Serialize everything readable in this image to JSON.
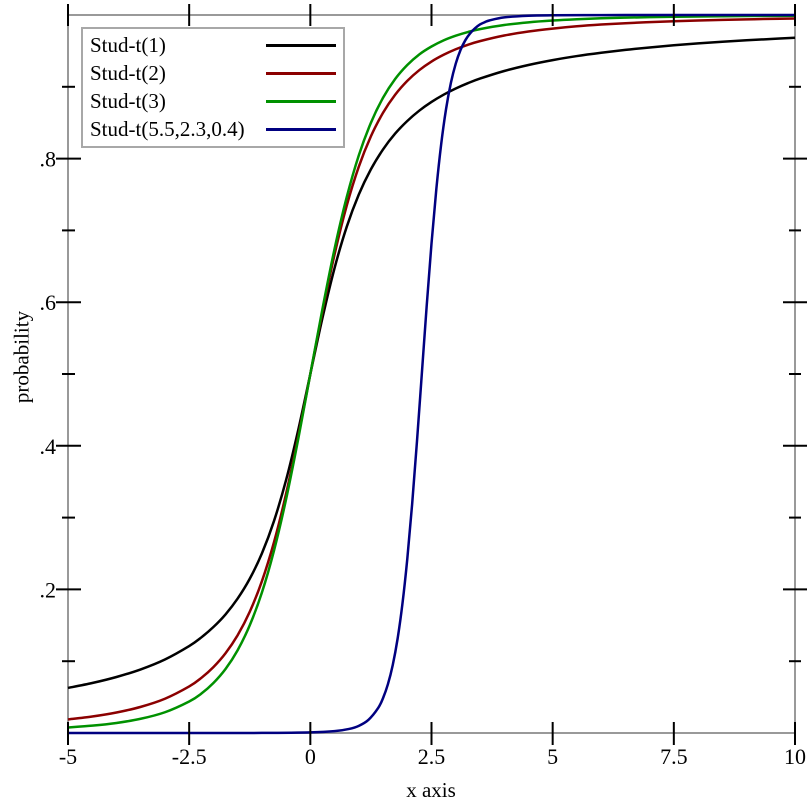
{
  "chart_data": {
    "type": "line",
    "title": "",
    "xlabel": "x axis",
    "ylabel": "probability",
    "xlim": [
      -5,
      10
    ],
    "ylim": [
      0,
      1
    ],
    "grid": false,
    "legend_position": "top-left",
    "frame_color": "#999999",
    "tick_color": "#000000",
    "legend_border_color": "#a8a8a8",
    "x_ticks": {
      "values": [
        -5,
        -2.5,
        0,
        2.5,
        5,
        7.5,
        10
      ],
      "labels": [
        "-5",
        "-2.5",
        "0",
        "2.5",
        "5",
        "7.5",
        "10"
      ]
    },
    "y_ticks": {
      "values": [
        0.2,
        0.4,
        0.6,
        0.8
      ],
      "labels": [
        ".2",
        ".4",
        ".6",
        ".8"
      ],
      "minor": [
        0.1,
        0.3,
        0.5,
        0.7,
        0.9
      ]
    },
    "series": [
      {
        "name": "Stud-t(1)",
        "color": "#000000",
        "x": [
          -5,
          -4.5,
          -4,
          -3.5,
          -3,
          -2.5,
          -2.25,
          -2,
          -1.75,
          -1.5,
          -1.25,
          -1,
          -0.75,
          -0.5,
          -0.25,
          0,
          0.25,
          0.5,
          0.75,
          1,
          1.25,
          1.5,
          1.75,
          2,
          2.25,
          2.5,
          2.75,
          3,
          3.25,
          3.5,
          4,
          4.5,
          5,
          5.5,
          6,
          6.5,
          7,
          7.5,
          8,
          8.5,
          9,
          9.5,
          10
        ],
        "y": [
          0.0628,
          0.0696,
          0.078,
          0.0886,
          0.1024,
          0.1211,
          0.1331,
          0.1476,
          0.1652,
          0.1872,
          0.2148,
          0.25,
          0.2952,
          0.3524,
          0.422,
          0.5,
          0.578,
          0.6476,
          0.7048,
          0.75,
          0.7852,
          0.8128,
          0.8348,
          0.8524,
          0.8669,
          0.8789,
          0.889,
          0.8976,
          0.905,
          0.9114,
          0.922,
          0.9304,
          0.9372,
          0.9428,
          0.9474,
          0.9514,
          0.9548,
          0.9578,
          0.9604,
          0.9627,
          0.9648,
          0.9666,
          0.9683
        ]
      },
      {
        "name": "Stud-t(2)",
        "color": "#8b0000",
        "x": [
          -5,
          -4.5,
          -4,
          -3.5,
          -3,
          -2.5,
          -2.25,
          -2,
          -1.75,
          -1.5,
          -1.25,
          -1,
          -0.75,
          -0.5,
          -0.25,
          0,
          0.25,
          0.5,
          0.75,
          1,
          1.25,
          1.5,
          1.75,
          2,
          2.25,
          2.5,
          2.75,
          3,
          3.25,
          3.5,
          4,
          4.5,
          5,
          5.5,
          6,
          6.5,
          7,
          7.5,
          8,
          8.5,
          9,
          9.5,
          10
        ],
        "y": [
          0.0189,
          0.023,
          0.0286,
          0.0364,
          0.0477,
          0.0648,
          0.0767,
          0.0918,
          0.1111,
          0.1362,
          0.1689,
          0.2113,
          0.2657,
          0.3333,
          0.413,
          0.5,
          0.587,
          0.6667,
          0.7343,
          0.7887,
          0.8311,
          0.8638,
          0.8889,
          0.9082,
          0.9233,
          0.9352,
          0.9446,
          0.9523,
          0.9585,
          0.9636,
          0.9714,
          0.977,
          0.9811,
          0.9843,
          0.9867,
          0.9886,
          0.9901,
          0.9913,
          0.9924,
          0.9932,
          0.9939,
          0.9946,
          0.9951
        ]
      },
      {
        "name": "Stud-t(3)",
        "color": "#009100",
        "x": [
          -5,
          -4.5,
          -4,
          -3.5,
          -3,
          -2.5,
          -2.25,
          -2,
          -1.75,
          -1.5,
          -1.25,
          -1,
          -0.75,
          -0.5,
          -0.25,
          0,
          0.25,
          0.5,
          0.75,
          1,
          1.25,
          1.5,
          1.75,
          2,
          2.25,
          2.5,
          2.75,
          3,
          3.25,
          3.5,
          4,
          4.5,
          5,
          5.5,
          6,
          6.5,
          7,
          7.5,
          8,
          8.5,
          9,
          9.5,
          10
        ],
        "y": [
          0.0077,
          0.0102,
          0.014,
          0.0198,
          0.0289,
          0.0439,
          0.0548,
          0.0697,
          0.0892,
          0.1153,
          0.1501,
          0.1955,
          0.254,
          0.3257,
          0.4094,
          0.5,
          0.5906,
          0.6743,
          0.746,
          0.8045,
          0.8499,
          0.8847,
          0.9108,
          0.9303,
          0.9452,
          0.9561,
          0.9647,
          0.9712,
          0.9763,
          0.9803,
          0.986,
          0.9898,
          0.9923,
          0.9941,
          0.9954,
          0.9963,
          0.997,
          0.9976,
          0.9979,
          0.9983,
          0.9986,
          0.9988,
          0.9989
        ]
      },
      {
        "name": "Stud-t(5.5,2.3,0.4)",
        "color": "#000080",
        "x": [
          -5,
          -2,
          -1,
          0,
          0.5,
          0.8,
          1,
          1.2,
          1.4,
          1.5,
          1.6,
          1.7,
          1.8,
          1.9,
          2,
          2.1,
          2.2,
          2.3,
          2.4,
          2.5,
          2.6,
          2.7,
          2.8,
          2.9,
          3,
          3.1,
          3.2,
          3.3,
          3.4,
          3.5,
          3.6,
          3.7,
          4,
          4.5,
          5,
          6,
          7,
          8,
          10
        ],
        "y": [
          0,
          0,
          0.0001,
          0.0009,
          0.0026,
          0.0057,
          0.01,
          0.0184,
          0.0349,
          0.0486,
          0.0678,
          0.0946,
          0.1311,
          0.1798,
          0.2422,
          0.3183,
          0.4059,
          0.5,
          0.5941,
          0.6817,
          0.7578,
          0.8202,
          0.8689,
          0.9054,
          0.9322,
          0.9514,
          0.9651,
          0.9747,
          0.9816,
          0.9868,
          0.99,
          0.9925,
          0.9967,
          0.999,
          0.9996,
          0.9999,
          1,
          1,
          1
        ]
      }
    ]
  }
}
